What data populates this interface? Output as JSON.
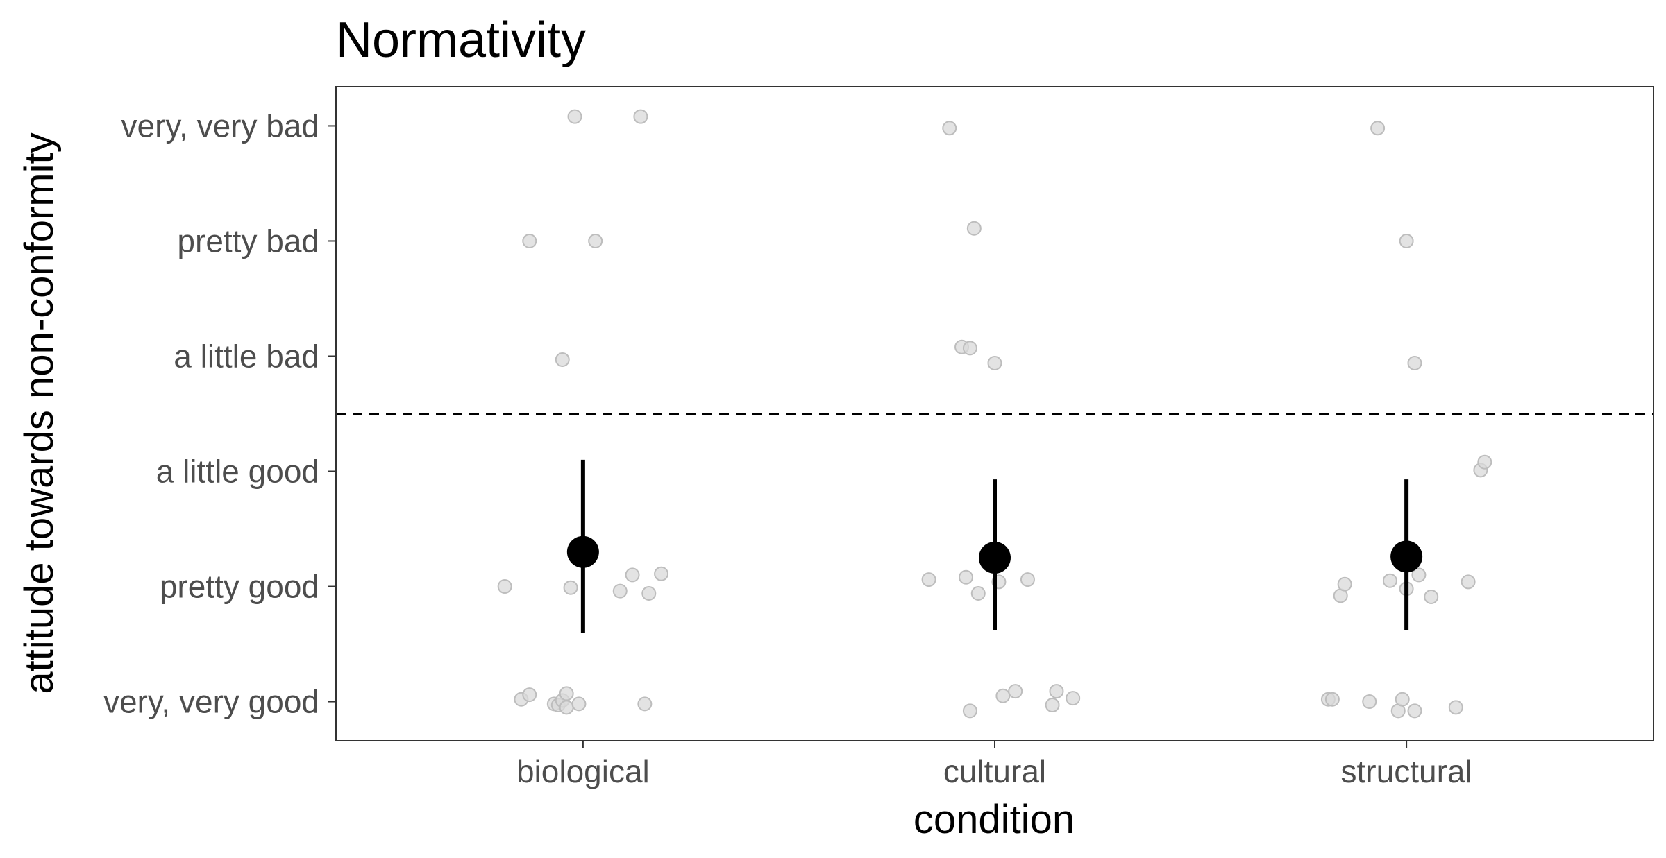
{
  "chart_data": {
    "type": "scatter",
    "title": "Normativity",
    "xlabel": "condition",
    "ylabel": "attitude towards non-conformity",
    "categories": [
      "biological",
      "cultural",
      "structural"
    ],
    "y_tick_labels": [
      "very, very good",
      "pretty good",
      "a little good",
      "a little bad",
      "pretty bad",
      "very, very bad"
    ],
    "y_tick_values": [
      1,
      2,
      3,
      4,
      5,
      6
    ],
    "ylim": [
      0.66,
      6.34
    ],
    "reference_line": {
      "y": 3.5,
      "style": "dashed"
    },
    "grid": false,
    "legend": "none",
    "summary": [
      {
        "category": "biological",
        "mean": 2.3,
        "lower": 1.6,
        "upper": 3.1
      },
      {
        "category": "cultural",
        "mean": 2.25,
        "lower": 1.62,
        "upper": 2.93
      },
      {
        "category": "structural",
        "mean": 2.26,
        "lower": 1.62,
        "upper": 2.93
      }
    ],
    "points": {
      "biological": [
        [
          0.98,
          6.08
        ],
        [
          1.14,
          6.08
        ],
        [
          0.87,
          5.0
        ],
        [
          1.03,
          5.0
        ],
        [
          0.95,
          3.97
        ],
        [
          0.81,
          2.0
        ],
        [
          0.97,
          1.99
        ],
        [
          1.09,
          1.96
        ],
        [
          1.12,
          2.1
        ],
        [
          1.16,
          1.94
        ],
        [
          1.19,
          2.11
        ],
        [
          0.85,
          1.02
        ],
        [
          0.87,
          1.06
        ],
        [
          0.93,
          0.98
        ],
        [
          0.94,
          0.97
        ],
        [
          0.95,
          1.01
        ],
        [
          0.96,
          0.95
        ],
        [
          0.96,
          1.07
        ],
        [
          0.99,
          0.98
        ],
        [
          1.15,
          0.98
        ]
      ],
      "cultural": [
        [
          1.89,
          5.98
        ],
        [
          1.95,
          5.11
        ],
        [
          1.92,
          4.08
        ],
        [
          1.94,
          4.07
        ],
        [
          2.0,
          3.94
        ],
        [
          1.84,
          2.06
        ],
        [
          1.93,
          2.08
        ],
        [
          1.96,
          1.94
        ],
        [
          2.01,
          2.04
        ],
        [
          2.08,
          2.06
        ],
        [
          1.94,
          0.92
        ],
        [
          2.02,
          1.05
        ],
        [
          2.05,
          1.09
        ],
        [
          2.14,
          0.97
        ],
        [
          2.15,
          1.09
        ],
        [
          2.19,
          1.03
        ]
      ],
      "structural": [
        [
          2.93,
          5.98
        ],
        [
          3.0,
          5.0
        ],
        [
          3.18,
          3.01
        ],
        [
          3.19,
          3.08
        ],
        [
          3.02,
          3.94
        ],
        [
          2.84,
          1.92
        ],
        [
          2.85,
          2.02
        ],
        [
          2.96,
          2.05
        ],
        [
          3.0,
          1.98
        ],
        [
          3.03,
          2.1
        ],
        [
          3.06,
          1.91
        ],
        [
          3.15,
          2.04
        ],
        [
          2.81,
          1.02
        ],
        [
          2.82,
          1.02
        ],
        [
          2.91,
          1.0
        ],
        [
          2.98,
          0.92
        ],
        [
          2.99,
          1.02
        ],
        [
          3.02,
          0.92
        ],
        [
          3.12,
          0.95
        ]
      ]
    },
    "colors": {
      "point_fill": "#d9d9d9",
      "point_stroke": "#bdbdbd",
      "summary": "#000000",
      "reference_line": "#000000",
      "panel_border": "#333333"
    }
  }
}
